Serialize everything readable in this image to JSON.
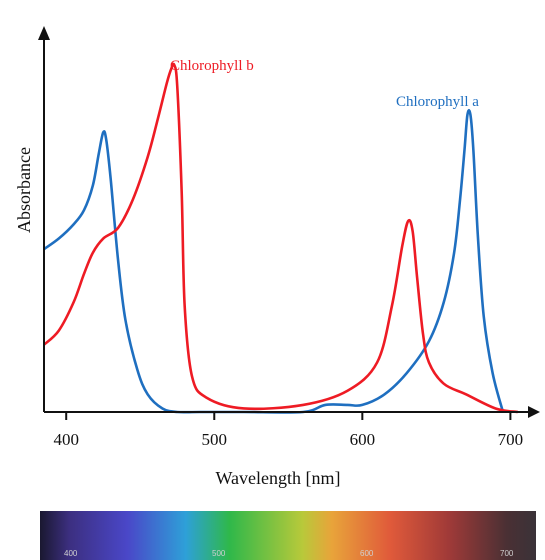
{
  "chart_data": {
    "type": "line",
    "xlabel": "Wavelength [nm]",
    "ylabel": "Absorbance",
    "xlim": [
      385,
      720
    ],
    "ylim": [
      0,
      1
    ],
    "x_ticks": [
      400,
      500,
      600,
      700
    ],
    "grid": false,
    "series": [
      {
        "name": "Chlorophyll a",
        "color": "#1f6fc0",
        "x": [
          385,
          395,
          405,
          412,
          418,
          422,
          425,
          427,
          430,
          435,
          440,
          448,
          455,
          465,
          475,
          490,
          520,
          560,
          575,
          590,
          600,
          615,
          630,
          645,
          655,
          662,
          666,
          669,
          671,
          673,
          675,
          678,
          682,
          688,
          695
        ],
        "y": [
          0.46,
          0.49,
          0.53,
          0.57,
          0.64,
          0.73,
          0.79,
          0.77,
          0.66,
          0.43,
          0.26,
          0.12,
          0.05,
          0.01,
          0.0,
          0.0,
          0.0,
          0.0,
          0.02,
          0.02,
          0.02,
          0.05,
          0.11,
          0.2,
          0.31,
          0.45,
          0.6,
          0.74,
          0.84,
          0.84,
          0.74,
          0.5,
          0.27,
          0.11,
          0.0
        ]
      },
      {
        "name": "Chlorophyll b",
        "color": "#ee1b24",
        "x": [
          385,
          395,
          405,
          412,
          418,
          425,
          435,
          445,
          455,
          462,
          468,
          471,
          473,
          475,
          478,
          480,
          485,
          495,
          520,
          560,
          590,
          610,
          620,
          627,
          631,
          634,
          637,
          641,
          645,
          655,
          670,
          690,
          705
        ],
        "y": [
          0.19,
          0.23,
          0.31,
          0.39,
          0.45,
          0.49,
          0.52,
          0.6,
          0.72,
          0.83,
          0.93,
          0.97,
          0.98,
          0.92,
          0.62,
          0.3,
          0.1,
          0.04,
          0.01,
          0.02,
          0.06,
          0.14,
          0.3,
          0.47,
          0.54,
          0.51,
          0.38,
          0.22,
          0.14,
          0.08,
          0.05,
          0.01,
          0.0
        ]
      }
    ]
  },
  "spectrum": {
    "labels": [
      "400",
      "500",
      "600",
      "700"
    ],
    "stops": [
      {
        "nm": 380,
        "color": "#1a1830"
      },
      {
        "nm": 400,
        "color": "#3c2f80"
      },
      {
        "nm": 440,
        "color": "#4a47c8"
      },
      {
        "nm": 480,
        "color": "#2ea0d8"
      },
      {
        "nm": 510,
        "color": "#2fb84a"
      },
      {
        "nm": 560,
        "color": "#b8c93a"
      },
      {
        "nm": 580,
        "color": "#e8a43a"
      },
      {
        "nm": 620,
        "color": "#e05a3a"
      },
      {
        "nm": 660,
        "color": "#a03a38"
      },
      {
        "nm": 700,
        "color": "#4a3034"
      },
      {
        "nm": 720,
        "color": "#3a3238"
      }
    ]
  }
}
